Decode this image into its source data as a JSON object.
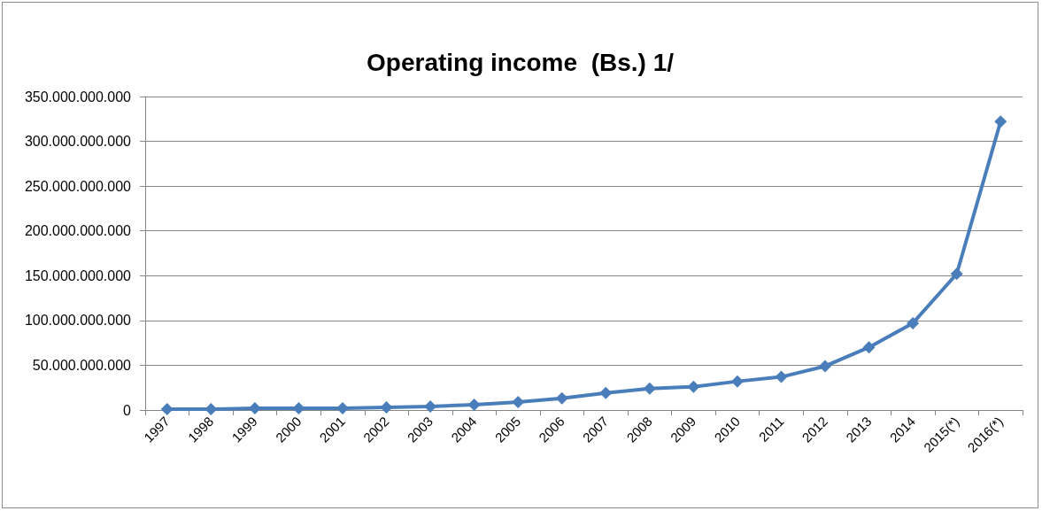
{
  "chart_data": {
    "type": "line",
    "title": "Operating income  (Bs.) 1/",
    "categories": [
      "1997",
      "1998",
      "1999",
      "2000",
      "2001",
      "2002",
      "2003",
      "2004",
      "2005",
      "2006",
      "2007",
      "2008",
      "2009",
      "2010",
      "2011",
      "2012",
      "2013",
      "2014",
      "2015(*)",
      "2016(*)"
    ],
    "series": [
      {
        "color": "#4a7ebb",
        "values": [
          1000000000,
          1000000000,
          2000000000,
          2000000000,
          2000000000,
          3000000000,
          4000000000,
          6000000000,
          9000000000,
          13000000000,
          19000000000,
          24000000000,
          26000000000,
          32000000000,
          37000000000,
          49000000000,
          70000000000,
          97000000000,
          152000000000,
          322000000000
        ]
      }
    ],
    "ylim": [
      0,
      350000000000
    ],
    "yticks": [
      0,
      {
        "value": 50000000000,
        "label": "50.000.000.000"
      },
      {
        "value": 100000000000,
        "label": "100.000.000.000"
      },
      {
        "value": 150000000000,
        "label": "150.000.000.000"
      },
      {
        "value": 200000000000,
        "label": "200.000.000.000"
      },
      {
        "value": 250000000000,
        "label": "250.000.000.000"
      },
      {
        "value": 300000000000,
        "label": "300.000.000.000"
      },
      {
        "value": 350000000000,
        "label": "350.000.000.000"
      }
    ],
    "grid": "y",
    "marker": "diamond",
    "line_style": "solid"
  }
}
